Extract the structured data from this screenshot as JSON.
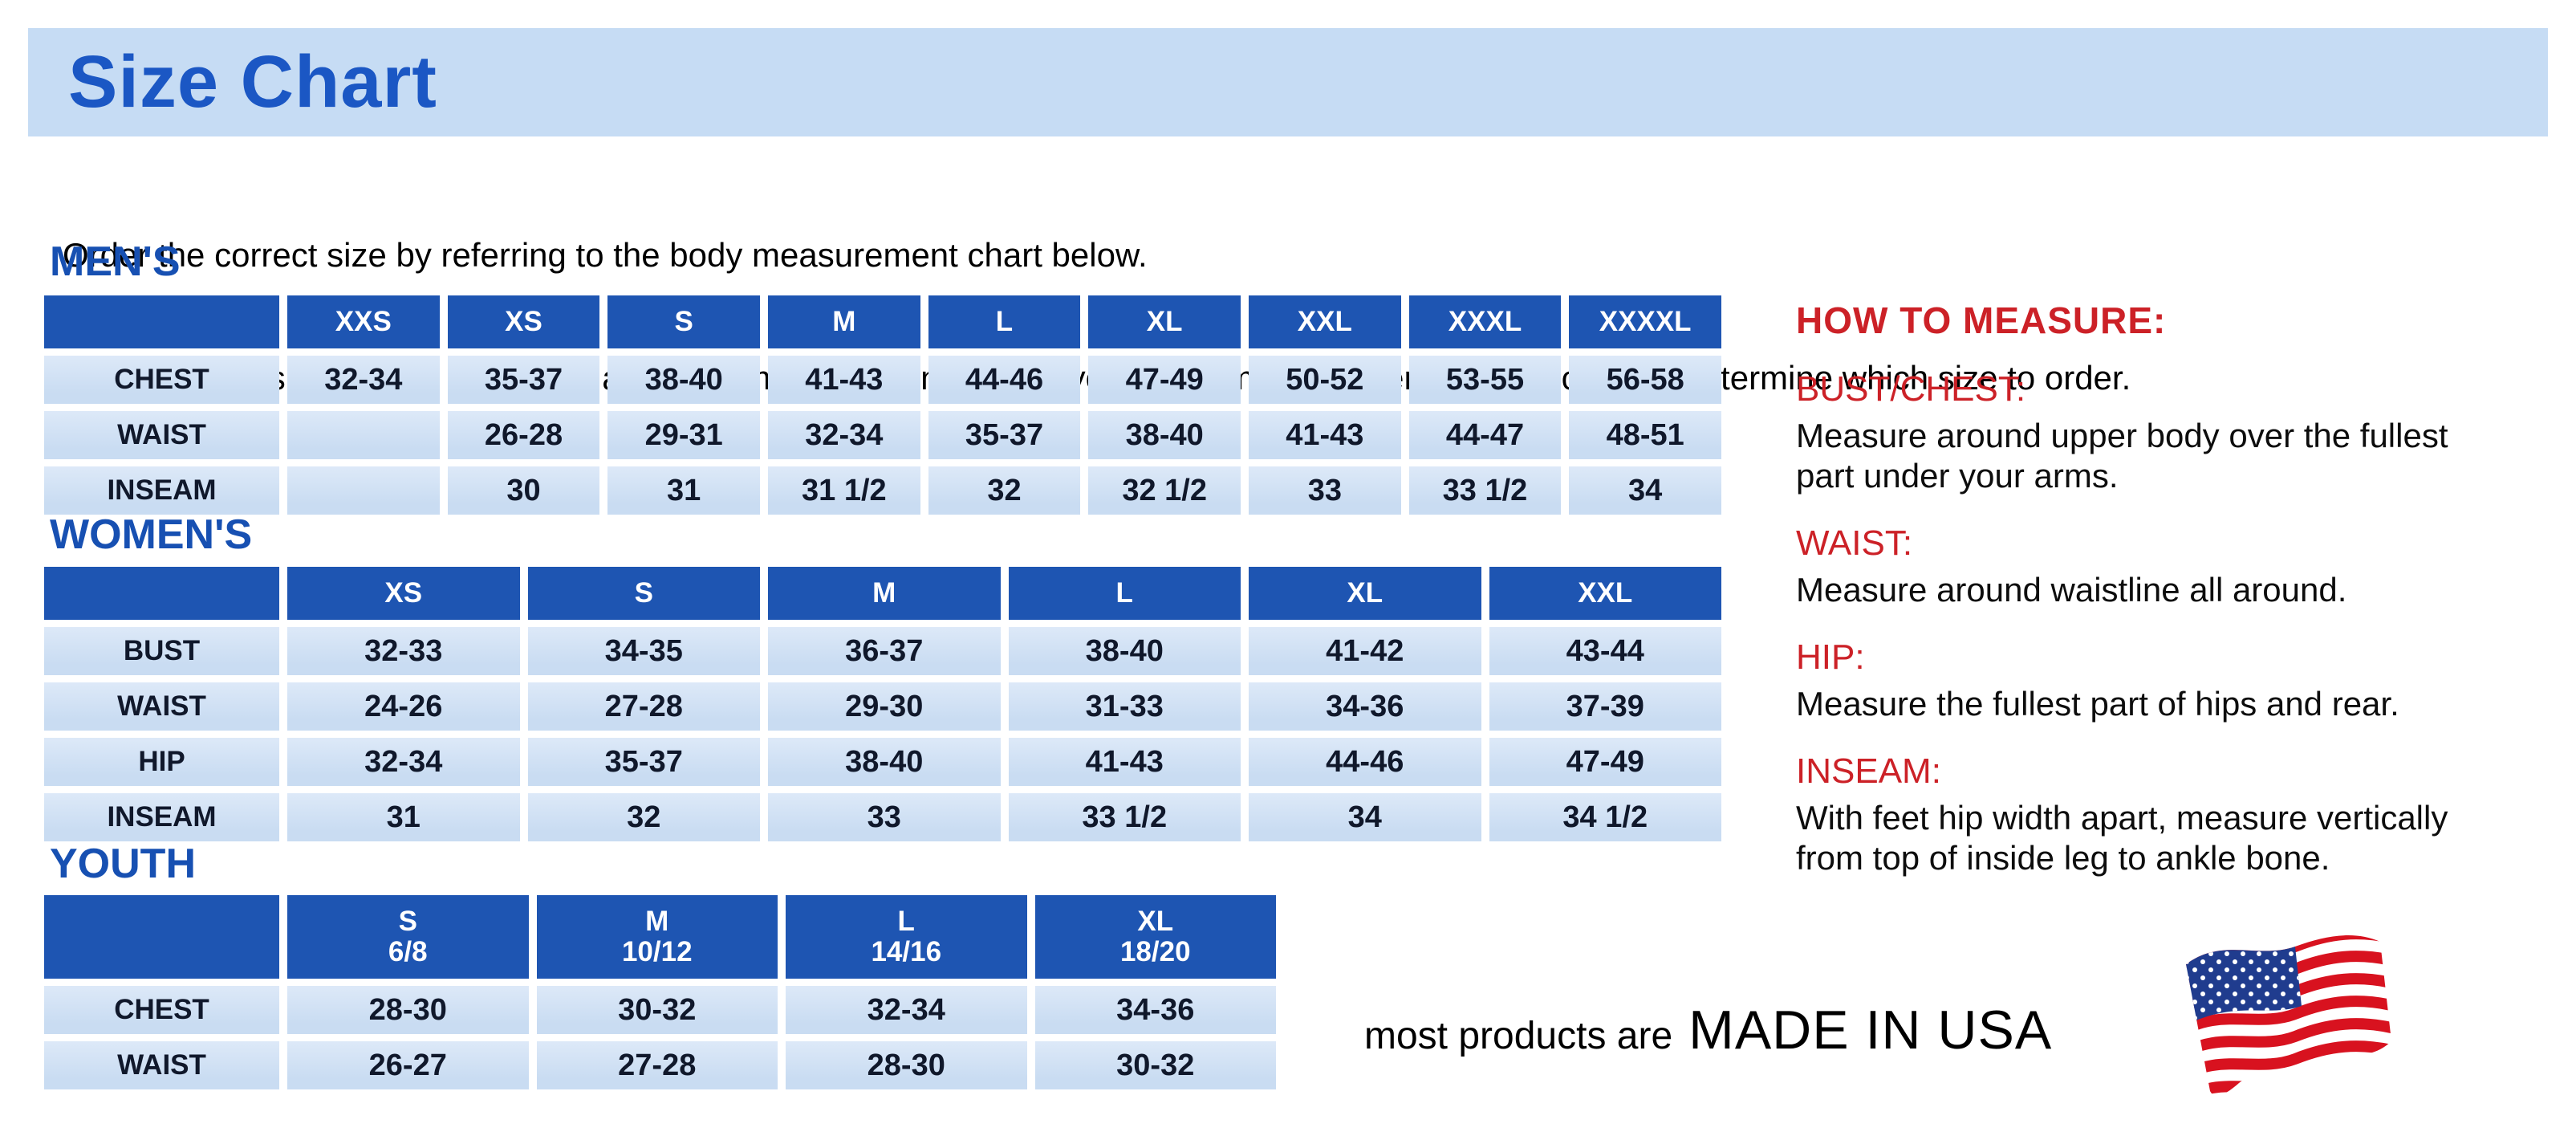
{
  "page": {
    "title": "Size Chart",
    "intro_line1": "Order the correct size by referring to the body measurement chart below.",
    "intro_line2": "Measurements shown on size chart are body measurements.  Find your body measurements on the chart to determine which size to order."
  },
  "colors": {
    "band_blue": "#c6dcf4",
    "title_blue": "#1b57c4",
    "heading_blue": "#1750b2",
    "header_blue": "#1e55b2",
    "cell_blue": "#c9dcf2",
    "cell_blue_light": "#dde9f8",
    "red": "#cc2127",
    "text_dark": "#10182b"
  },
  "tables": {
    "mens": {
      "heading": "MEN'S",
      "columns": [
        "XXS",
        "XS",
        "S",
        "M",
        "L",
        "XL",
        "XXL",
        "XXXL",
        "XXXXL"
      ],
      "rows": [
        {
          "label": "CHEST",
          "values": [
            "32-34",
            "35-37",
            "38-40",
            "41-43",
            "44-46",
            "47-49",
            "50-52",
            "53-55",
            "56-58"
          ]
        },
        {
          "label": "WAIST",
          "values": [
            "",
            "26-28",
            "29-31",
            "32-34",
            "35-37",
            "38-40",
            "41-43",
            "44-47",
            "48-51"
          ]
        },
        {
          "label": "INSEAM",
          "values": [
            "",
            "30",
            "31",
            "31 1/2",
            "32",
            "32 1/2",
            "33",
            "33 1/2",
            "34"
          ]
        }
      ]
    },
    "womens": {
      "heading": "WOMEN'S",
      "columns": [
        "XS",
        "S",
        "M",
        "L",
        "XL",
        "XXL"
      ],
      "rows": [
        {
          "label": "BUST",
          "values": [
            "32-33",
            "34-35",
            "36-37",
            "38-40",
            "41-42",
            "43-44"
          ]
        },
        {
          "label": "WAIST",
          "values": [
            "24-26",
            "27-28",
            "29-30",
            "31-33",
            "34-36",
            "37-39"
          ]
        },
        {
          "label": "HIP",
          "values": [
            "32-34",
            "35-37",
            "38-40",
            "41-43",
            "44-46",
            "47-49"
          ]
        },
        {
          "label": "INSEAM",
          "values": [
            "31",
            "32",
            "33",
            "33 1/2",
            "34",
            "34 1/2"
          ]
        }
      ]
    },
    "youth": {
      "heading": "YOUTH",
      "columns": [
        {
          "size": "S",
          "range": "6/8"
        },
        {
          "size": "M",
          "range": "10/12"
        },
        {
          "size": "L",
          "range": "14/16"
        },
        {
          "size": "XL",
          "range": "18/20"
        }
      ],
      "rows": [
        {
          "label": "CHEST",
          "values": [
            "28-30",
            "30-32",
            "32-34",
            "34-36"
          ]
        },
        {
          "label": "WAIST",
          "values": [
            "26-27",
            "27-28",
            "28-30",
            "30-32"
          ]
        }
      ]
    }
  },
  "how_to_measure": {
    "heading": "HOW TO MEASURE:",
    "items": [
      {
        "term": "BUST/CHEST:",
        "desc": "Measure around upper body over the fullest part under your arms."
      },
      {
        "term": "WAIST:",
        "desc": "Measure around waistline all around."
      },
      {
        "term": "HIP:",
        "desc": "Measure the fullest part of hips and rear."
      },
      {
        "term": "INSEAM:",
        "desc": "With feet hip width apart, measure vertically from top of inside leg to ankle bone."
      }
    ]
  },
  "footer": {
    "made_in_prefix": "most products are",
    "made_in": "MADE IN USA",
    "flag_icon": "us-flag-icon"
  }
}
